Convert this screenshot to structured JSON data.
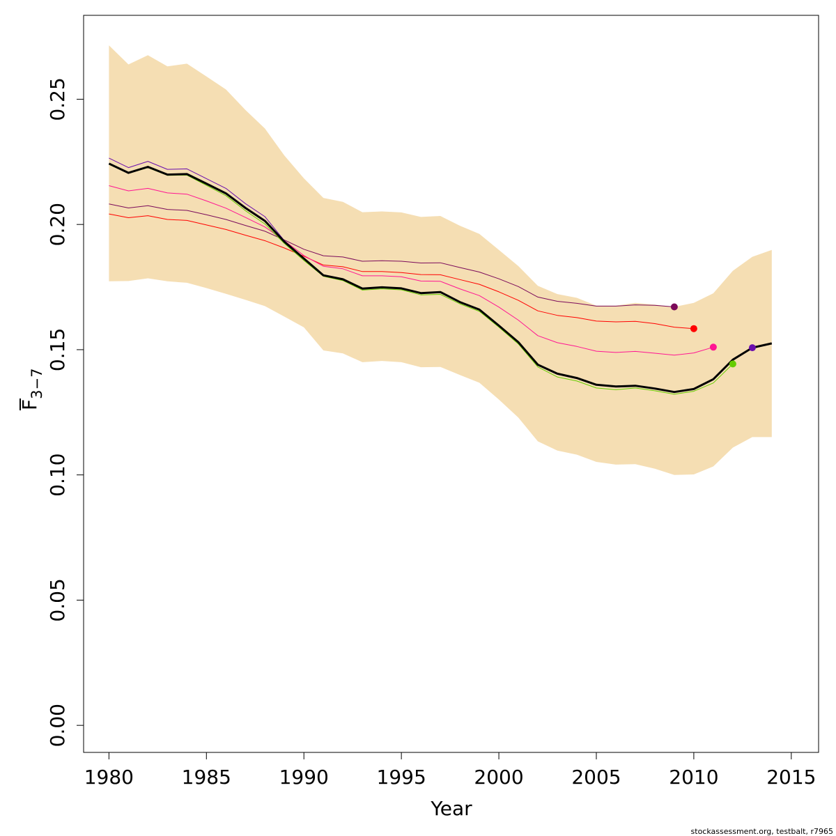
{
  "chart_data": {
    "type": "line",
    "xlabel": "Year",
    "ylabel": "F",
    "ylabel_subscript": "3−7",
    "xlim": [
      1978.7,
      2016.4
    ],
    "ylim": [
      -0.0108,
      0.2835
    ],
    "x_ticks": [
      1980,
      1985,
      1990,
      1995,
      2000,
      2005,
      2010,
      2015
    ],
    "y_ticks": [
      "0.00",
      "0.05",
      "0.10",
      "0.15",
      "0.20",
      "0.25"
    ],
    "y_tick_values": [
      0,
      0.05,
      0.1,
      0.15,
      0.2,
      0.25
    ],
    "band_color": "#F5DEB3",
    "band": {
      "x": [
        1980,
        1981,
        1982,
        1983,
        1984,
        1985,
        1986,
        1987,
        1988,
        1989,
        1990,
        1991,
        1992,
        1993,
        1994,
        1995,
        1996,
        1997,
        1998,
        1999,
        2000,
        2001,
        2002,
        2003,
        2004,
        2005,
        2006,
        2007,
        2008,
        2009,
        2010,
        2011,
        2012,
        2013,
        2014
      ],
      "upper": [
        0.2715,
        0.2639,
        0.2676,
        0.2631,
        0.2642,
        0.2591,
        0.2539,
        0.2457,
        0.2383,
        0.2275,
        0.2184,
        0.2106,
        0.209,
        0.2049,
        0.2052,
        0.2048,
        0.203,
        0.2034,
        0.1995,
        0.1962,
        0.1898,
        0.1834,
        0.1755,
        0.1722,
        0.1707,
        0.1676,
        0.1676,
        0.1687,
        0.168,
        0.1671,
        0.1687,
        0.1725,
        0.1815,
        0.1871,
        0.1898
      ],
      "lower": [
        0.1773,
        0.1774,
        0.1785,
        0.1773,
        0.1767,
        0.1746,
        0.1723,
        0.1699,
        0.1674,
        0.1632,
        0.1589,
        0.1497,
        0.1485,
        0.145,
        0.1455,
        0.145,
        0.143,
        0.1431,
        0.1399,
        0.1368,
        0.1301,
        0.1229,
        0.1134,
        0.1097,
        0.1081,
        0.1052,
        0.1041,
        0.1043,
        0.1025,
        0.1,
        0.1002,
        0.1034,
        0.1109,
        0.1151,
        0.1151
      ]
    },
    "series": [
      {
        "color": "#7B0A5A",
        "x": [
          1980,
          1981,
          1982,
          1983,
          1984,
          1985,
          1986,
          1987,
          1988,
          1989,
          1990,
          1991,
          1992,
          1993,
          1994,
          1995,
          1996,
          1997,
          1998,
          1999,
          2000,
          2001,
          2002,
          2003,
          2004,
          2005,
          2006,
          2007,
          2008,
          2009
        ],
        "y": [
          0.2082,
          0.2066,
          0.2075,
          0.206,
          0.2056,
          0.2039,
          0.202,
          0.1996,
          0.1973,
          0.1938,
          0.1901,
          0.1875,
          0.187,
          0.1853,
          0.1855,
          0.1853,
          0.1846,
          0.1847,
          0.1828,
          0.181,
          0.1783,
          0.1752,
          0.171,
          0.1693,
          0.1685,
          0.1674,
          0.1674,
          0.1679,
          0.1677,
          0.1671
        ],
        "end_point": [
          2009,
          0.1671
        ]
      },
      {
        "color": "#FF0000",
        "x": [
          1980,
          1981,
          1982,
          1983,
          1984,
          1985,
          1986,
          1987,
          1988,
          1989,
          1990,
          1991,
          1992,
          1993,
          1994,
          1995,
          1996,
          1997,
          1998,
          1999,
          2000,
          2001,
          2002,
          2003,
          2004,
          2005,
          2006,
          2007,
          2008,
          2009,
          2010
        ],
        "y": [
          0.2042,
          0.2027,
          0.2035,
          0.202,
          0.2016,
          0.1998,
          0.198,
          0.1957,
          0.1935,
          0.1906,
          0.1873,
          0.1838,
          0.1831,
          0.1812,
          0.1812,
          0.1808,
          0.18,
          0.1799,
          0.178,
          0.1761,
          0.1731,
          0.1697,
          0.1655,
          0.1637,
          0.1628,
          0.1614,
          0.1611,
          0.1613,
          0.1604,
          0.159,
          0.1584
        ],
        "end_point": [
          2010,
          0.1584
        ]
      },
      {
        "color": "#FF1493",
        "x": [
          1980,
          1981,
          1982,
          1983,
          1984,
          1985,
          1986,
          1987,
          1988,
          1989,
          1990,
          1991,
          1992,
          1993,
          1994,
          1995,
          1996,
          1997,
          1998,
          1999,
          2000,
          2001,
          2002,
          2003,
          2004,
          2005,
          2006,
          2007,
          2008,
          2009,
          2010,
          2011
        ],
        "y": [
          0.2155,
          0.2134,
          0.2144,
          0.2126,
          0.2121,
          0.2094,
          0.2065,
          0.2028,
          0.199,
          0.1935,
          0.1876,
          0.1833,
          0.1823,
          0.1795,
          0.1795,
          0.1791,
          0.1774,
          0.1773,
          0.1743,
          0.1716,
          0.167,
          0.1618,
          0.1556,
          0.1528,
          0.1513,
          0.1494,
          0.1489,
          0.1493,
          0.1486,
          0.1478,
          0.1487,
          0.151
        ],
        "end_point": [
          2011,
          0.151
        ]
      },
      {
        "color": "#66CC00",
        "x": [
          1980,
          1981,
          1982,
          1983,
          1984,
          1985,
          1986,
          1987,
          1988,
          1989,
          1990,
          1991,
          1992,
          1993,
          1994,
          1995,
          1996,
          1997,
          1998,
          1999,
          2000,
          2001,
          2002,
          2003,
          2004,
          2005,
          2006,
          2007,
          2008,
          2009,
          2010,
          2011,
          2012
        ],
        "y": [
          0.224,
          0.2204,
          0.2227,
          0.2196,
          0.2197,
          0.2156,
          0.2115,
          0.2055,
          0.2002,
          0.1924,
          0.1856,
          0.1793,
          0.1776,
          0.1738,
          0.1743,
          0.1739,
          0.1719,
          0.1721,
          0.1683,
          0.1653,
          0.159,
          0.1523,
          0.1431,
          0.1391,
          0.1375,
          0.1347,
          0.134,
          0.1347,
          0.1336,
          0.1322,
          0.1334,
          0.1367,
          0.1443
        ],
        "end_point": [
          2012,
          0.1443
        ]
      },
      {
        "color": "#6A0DAD",
        "x": [
          1980,
          1981,
          1982,
          1983,
          1984,
          1985,
          1986,
          1987,
          1988,
          1989,
          1990,
          1991,
          1992,
          1993,
          1994,
          1995,
          1996,
          1997,
          1998,
          1999,
          2000,
          2001,
          2002,
          2003,
          2004,
          2005,
          2006,
          2007,
          2008,
          2009,
          2010,
          2011,
          2012,
          2013
        ],
        "y": [
          0.2265,
          0.2227,
          0.2252,
          0.222,
          0.2222,
          0.2183,
          0.2144,
          0.2083,
          0.2031,
          0.1935,
          0.1864,
          0.1798,
          0.1781,
          0.1744,
          0.1749,
          0.1745,
          0.1726,
          0.173,
          0.169,
          0.1662,
          0.1597,
          0.1531,
          0.144,
          0.1404,
          0.1387,
          0.136,
          0.1353,
          0.1356,
          0.1345,
          0.1331,
          0.1343,
          0.1382,
          0.146,
          0.1508
        ],
        "end_point": [
          2013,
          0.1508
        ]
      },
      {
        "color": "#000000",
        "x": [
          1980,
          1981,
          1982,
          1983,
          1984,
          1985,
          1986,
          1987,
          1988,
          1989,
          1990,
          1991,
          1992,
          1993,
          1994,
          1995,
          1996,
          1997,
          1998,
          1999,
          2000,
          2001,
          2002,
          2003,
          2004,
          2005,
          2006,
          2007,
          2008,
          2009,
          2010,
          2011,
          2012,
          2013,
          2014
        ],
        "y": [
          0.2243,
          0.2206,
          0.223,
          0.2199,
          0.2201,
          0.2163,
          0.2124,
          0.2066,
          0.2014,
          0.1931,
          0.1864,
          0.1797,
          0.1781,
          0.1744,
          0.1749,
          0.1745,
          0.1726,
          0.173,
          0.169,
          0.166,
          0.1596,
          0.153,
          0.144,
          0.1404,
          0.1387,
          0.136,
          0.1353,
          0.1356,
          0.1345,
          0.1331,
          0.1343,
          0.1382,
          0.146,
          0.1508,
          0.1525
        ],
        "bold": true
      }
    ]
  },
  "footer": "stockassessment.org, testbalt, r7965"
}
